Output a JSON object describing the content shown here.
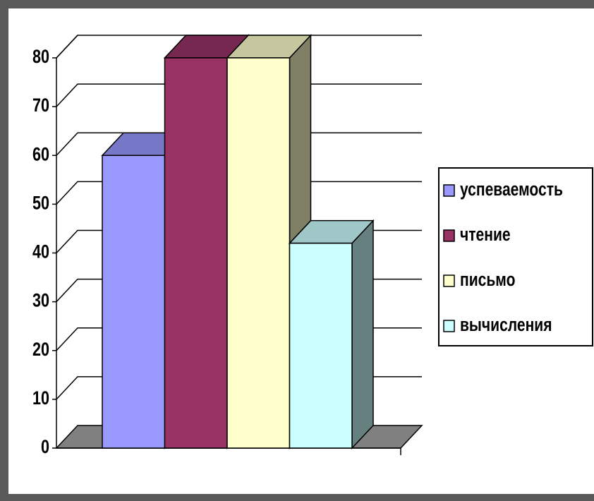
{
  "chart_data": {
    "type": "bar3d",
    "categories": [
      null
    ],
    "series": [
      {
        "name": "успеваемость",
        "color": "#9999ff",
        "values": [
          60
        ]
      },
      {
        "name": "чтение",
        "color": "#993366",
        "values": [
          80
        ]
      },
      {
        "name": "письмо",
        "color": "#ffffcc",
        "values": [
          80
        ]
      },
      {
        "name": "вычисления",
        "color": "#ccffff",
        "values": [
          42
        ]
      }
    ],
    "ylim": [
      0,
      80
    ],
    "yticks": [
      0,
      10,
      20,
      30,
      40,
      50,
      60,
      70,
      80
    ],
    "grid": true,
    "legend": "right"
  }
}
